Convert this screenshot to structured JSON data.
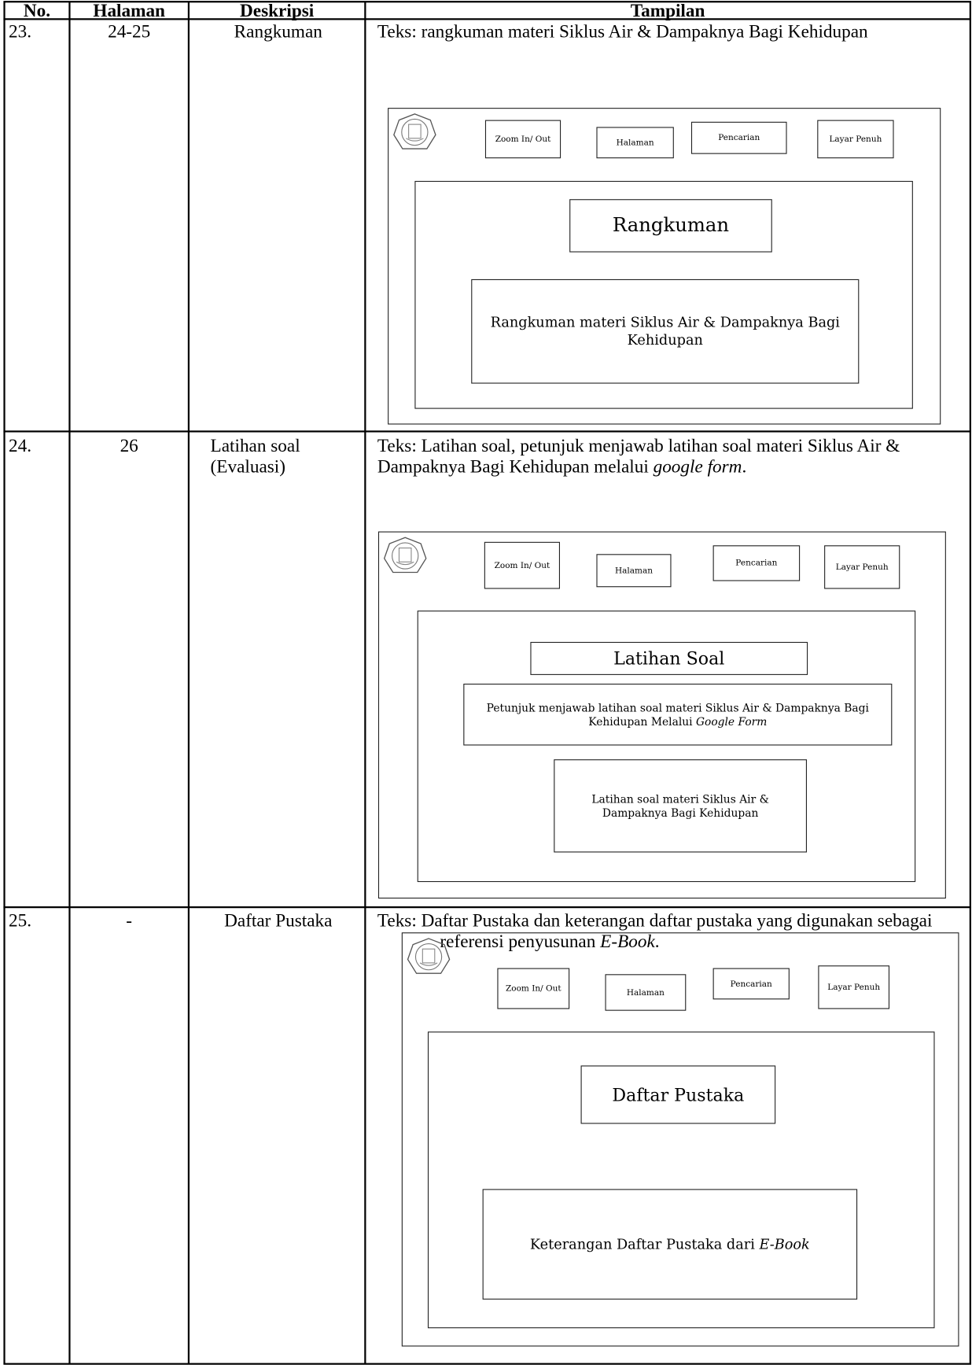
{
  "table": {
    "headers": [
      "No.",
      "Halaman",
      "Deskripsi",
      "Tampilan"
    ],
    "rows": [
      {
        "no": "23.",
        "halaman": "24-25",
        "deskripsi": "Rangkuman",
        "teks": [
          {
            "text": "Teks: rangkuman materi Siklus Air & Dampaknya Bagi Kehidupan"
          }
        ],
        "tampilan": {
          "buttons": [
            "Zoom In/ Out",
            "Halaman",
            "Pencarian",
            "Layar Penuh"
          ],
          "title": "Rangkuman",
          "boxes": [
            [
              {
                "text": "Rangkuman materi Siklus Air & Dampaknya Bagi Kehidupan"
              }
            ]
          ]
        }
      },
      {
        "no": "24.",
        "halaman": "26",
        "deskripsi": "Latihan soal (Evaluasi)",
        "teks": [
          {
            "text": "Teks:  Latihan soal, petunjuk menjawab latihan soal materi Siklus Air & Dampaknya Bagi Kehidupan melalui "
          },
          {
            "text": "google form",
            "italic": true
          },
          {
            "text": "."
          }
        ],
        "tampilan": {
          "buttons": [
            "Zoom In/ Out",
            "Halaman",
            "Pencarian",
            "Layar Penuh"
          ],
          "title": "Latihan Soal",
          "boxes": [
            [
              {
                "text": "Petunjuk menjawab  latihan soal materi Siklus Air & Dampaknya Bagi Kehidupan Melalui "
              },
              {
                "text": "Google Form",
                "italic": true
              }
            ],
            [
              {
                "text": "Latihan soal materi Siklus Air & Dampaknya Bagi Kehidupan"
              }
            ]
          ]
        }
      },
      {
        "no": "25.",
        "halaman": "-",
        "deskripsi": "Daftar Pustaka",
        "teks": [
          {
            "text": "Teks: Daftar Pustaka dan keterangan daftar pustaka yang digunakan sebagai referensi penyusunan "
          },
          {
            "text": "E-Book",
            "italic": true
          },
          {
            "text": "."
          }
        ],
        "tampilan": {
          "buttons": [
            "Zoom In/ Out",
            "Halaman",
            "Pencarian",
            "Layar Penuh"
          ],
          "title": "Daftar Pustaka",
          "boxes": [
            [
              {
                "text": "Keterangan Daftar Pustaka dari "
              },
              {
                "text": "E-Book",
                "italic": true
              }
            ]
          ]
        }
      }
    ]
  }
}
